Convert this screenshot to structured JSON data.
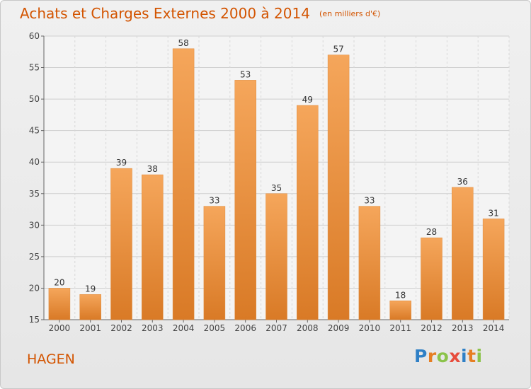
{
  "header": {
    "title": "Achats et Charges Externes 2000 à 2014",
    "subtitle": "(en milliers d'€)"
  },
  "footer": {
    "city": "HAGEN",
    "logo": {
      "letters": [
        "P",
        "r",
        "o",
        "x",
        "i",
        "t",
        "i"
      ],
      "colors": [
        "#2f80c6",
        "#e67e22",
        "#8bc34a",
        "#e74c3c",
        "#2f80c6",
        "#e67e22",
        "#8bc34a"
      ]
    }
  },
  "chart_data": {
    "type": "bar",
    "title": "Achats et Charges Externes 2000 à 2014",
    "subtitle": "(en milliers d'€)",
    "categories": [
      "2000",
      "2001",
      "2002",
      "2003",
      "2004",
      "2005",
      "2006",
      "2007",
      "2008",
      "2009",
      "2010",
      "2011",
      "2012",
      "2013",
      "2014"
    ],
    "values": [
      20,
      19,
      39,
      38,
      58,
      33,
      53,
      35,
      49,
      57,
      33,
      18,
      28,
      36,
      31
    ],
    "data_labels": [
      "20",
      "19",
      "39",
      "38",
      "58",
      "33",
      "53",
      "35",
      "49",
      "57",
      "33",
      "18",
      "28",
      "36",
      "31"
    ],
    "ylim": [
      15,
      60
    ],
    "yticks": [
      15,
      20,
      25,
      30,
      35,
      40,
      45,
      50,
      55,
      60
    ],
    "grid": true,
    "colors": {
      "bar_top": "#f5a65b",
      "bar_bottom": "#d97a26",
      "text": "#d35400"
    }
  }
}
